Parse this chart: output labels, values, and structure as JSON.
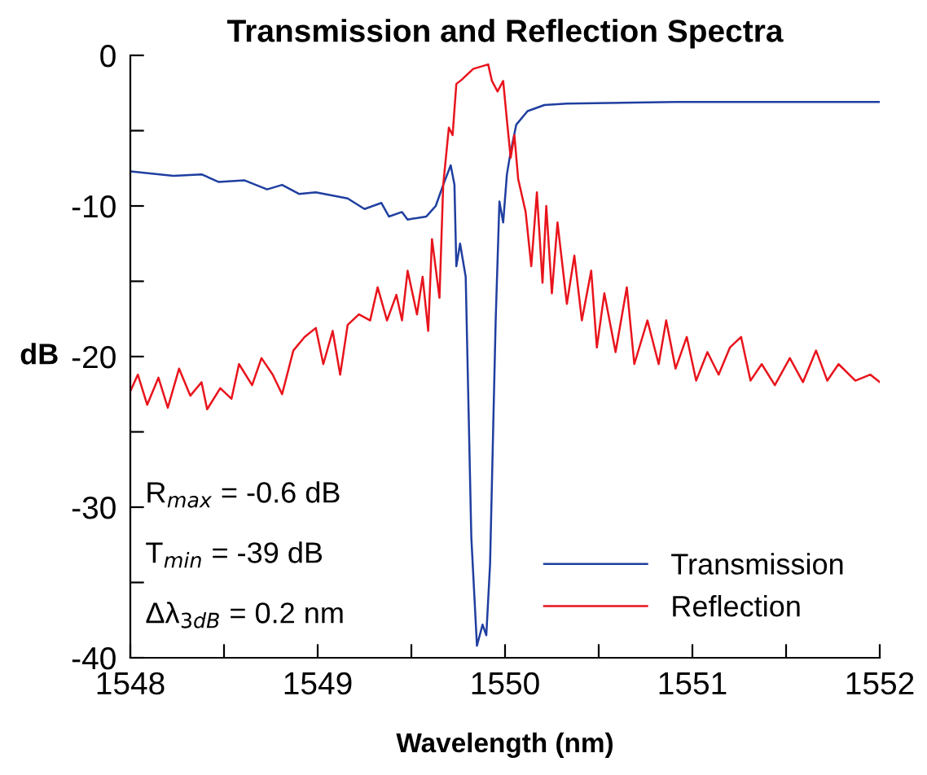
{
  "chart_data": {
    "type": "line",
    "title": "Transmission and Reflection Spectra",
    "xlabel": "Wavelength (nm)",
    "ylabel": "dB",
    "xlim": [
      1548,
      1552
    ],
    "ylim": [
      -40,
      0
    ],
    "xticks": [
      1548,
      {
        "value": 1548.5,
        "label": null
      },
      1549,
      {
        "value": 1549.5,
        "label": null
      },
      1550,
      {
        "value": 1550.5,
        "label": null
      },
      1551,
      {
        "value": 1551.5,
        "label": null
      },
      1552
    ],
    "yticks": [
      -40,
      {
        "value": -35,
        "label": null
      },
      -30,
      {
        "value": -25,
        "label": null
      },
      -20,
      {
        "value": -15,
        "label": null
      },
      -10,
      {
        "value": -5,
        "label": null
      },
      0
    ],
    "grid": false,
    "legend": "bottom right",
    "marker": "none",
    "line_style": "solid",
    "annotations": [
      "R$_{max}$ = -0.6 dB",
      "T$_{min}$ = -39 dB",
      "Δλ$_{3dB}$ = 0.2 nm"
    ],
    "series": [
      {
        "name": "Transmission",
        "color": "#1f3fa0",
        "x": [
          1548.0,
          1548.23,
          1548.38,
          1548.47,
          1548.61,
          1548.73,
          1548.81,
          1548.9,
          1548.99,
          1549.16,
          1549.25,
          1549.34,
          1549.38,
          1549.45,
          1549.48,
          1549.58,
          1549.63,
          1549.67,
          1549.71,
          1549.73,
          1549.74,
          1549.76,
          1549.79,
          1549.82,
          1549.85,
          1549.88,
          1549.9,
          1549.92,
          1549.95,
          1549.97,
          1549.99,
          1550.01,
          1550.03,
          1550.06,
          1550.12,
          1550.21,
          1550.33,
          1550.91,
          1552.0
        ],
        "values": [
          -7.7,
          -8.0,
          -7.9,
          -8.4,
          -8.3,
          -8.9,
          -8.6,
          -9.2,
          -9.1,
          -9.5,
          -10.2,
          -9.8,
          -10.7,
          -10.4,
          -10.9,
          -10.7,
          -10.0,
          -8.6,
          -7.3,
          -8.6,
          -14.0,
          -12.5,
          -14.7,
          -32.0,
          -39.2,
          -37.8,
          -38.5,
          -33.8,
          -17.6,
          -9.7,
          -11.1,
          -7.9,
          -6.4,
          -4.6,
          -3.7,
          -3.3,
          -3.2,
          -3.1,
          -3.1
        ]
      },
      {
        "name": "Reflection",
        "color": "#e8141c",
        "x": [
          1548.0,
          1548.04,
          1548.09,
          1548.15,
          1548.2,
          1548.26,
          1548.32,
          1548.38,
          1548.41,
          1548.48,
          1548.54,
          1548.58,
          1548.65,
          1548.7,
          1548.76,
          1548.81,
          1548.87,
          1548.93,
          1548.99,
          1549.03,
          1549.08,
          1549.12,
          1549.16,
          1549.22,
          1549.28,
          1549.32,
          1549.37,
          1549.42,
          1549.45,
          1549.48,
          1549.53,
          1549.56,
          1549.59,
          1549.61,
          1549.65,
          1549.67,
          1549.7,
          1549.72,
          1549.74,
          1549.77,
          1549.83,
          1549.91,
          1549.93,
          1549.96,
          1549.99,
          1550.01,
          1550.03,
          1550.05,
          1550.07,
          1550.11,
          1550.14,
          1550.17,
          1550.2,
          1550.22,
          1550.25,
          1550.28,
          1550.33,
          1550.37,
          1550.41,
          1550.46,
          1550.49,
          1550.53,
          1550.59,
          1550.65,
          1550.69,
          1550.76,
          1550.82,
          1550.86,
          1550.91,
          1550.97,
          1551.02,
          1551.08,
          1551.14,
          1551.2,
          1551.26,
          1551.31,
          1551.37,
          1551.44,
          1551.52,
          1551.59,
          1551.66,
          1551.72,
          1551.78,
          1551.87,
          1551.95,
          1552.0
        ],
        "values": [
          -22.3,
          -21.2,
          -23.2,
          -21.4,
          -23.4,
          -20.8,
          -22.6,
          -21.7,
          -23.5,
          -22.1,
          -22.8,
          -20.5,
          -21.9,
          -20.1,
          -21.2,
          -22.5,
          -19.6,
          -18.7,
          -18.1,
          -20.5,
          -18.3,
          -21.2,
          -17.9,
          -17.2,
          -17.6,
          -15.4,
          -17.6,
          -15.9,
          -17.6,
          -14.3,
          -17.2,
          -14.7,
          -18.3,
          -12.2,
          -16.1,
          -8.6,
          -4.8,
          -5.3,
          -1.9,
          -1.6,
          -0.9,
          -0.6,
          -1.7,
          -2.4,
          -1.7,
          -4.3,
          -6.8,
          -5.3,
          -8.2,
          -10.4,
          -14.0,
          -9.1,
          -15.1,
          -10.0,
          -15.8,
          -11.1,
          -16.5,
          -13.3,
          -17.6,
          -14.3,
          -19.4,
          -15.8,
          -19.7,
          -15.4,
          -20.5,
          -17.6,
          -20.5,
          -17.6,
          -20.8,
          -18.7,
          -21.6,
          -19.7,
          -21.2,
          -19.4,
          -18.7,
          -21.6,
          -20.5,
          -21.9,
          -20.1,
          -21.7,
          -19.6,
          -21.6,
          -20.5,
          -21.6,
          -21.2,
          -21.7
        ]
      }
    ]
  }
}
